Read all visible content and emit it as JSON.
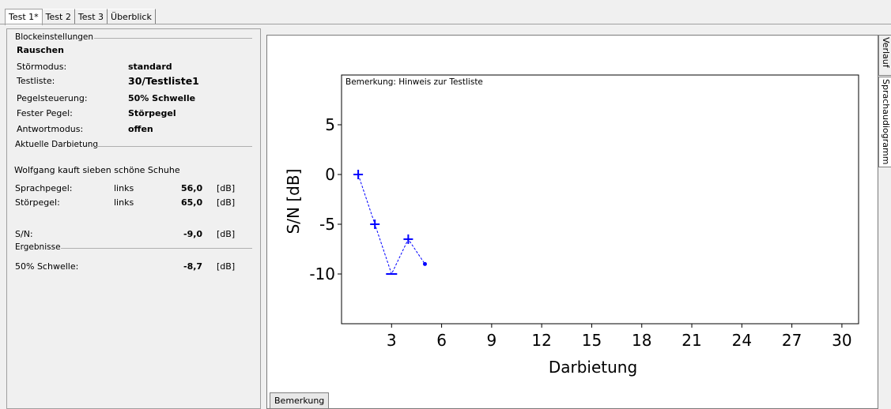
{
  "tabs": [
    "Test 1*",
    "Test 2",
    "Test 3",
    "Überblick"
  ],
  "block": {
    "header": "Blockeinstellungen",
    "noise": "Rauschen",
    "rows": [
      {
        "label": "Störmodus:",
        "value": "standard"
      },
      {
        "label": "Testliste:",
        "value": "30/Testliste1"
      },
      {
        "label": "Pegelsteuerung:",
        "value": "50% Schwelle"
      },
      {
        "label": "Fester Pegel:",
        "value": "Störpegel"
      },
      {
        "label": "Antwortmodus:",
        "value": "offen"
      }
    ]
  },
  "current": {
    "header": "Aktuelle Darbietung",
    "sentence": "Wolfgang kauft sieben schöne Schuhe",
    "speech_label": "Sprachpegel:",
    "speech_side": "links",
    "speech_value": "56,0",
    "speech_unit": "[dB]",
    "noise_label": "Störpegel:",
    "noise_side": "links",
    "noise_value": "65,0",
    "noise_unit": "[dB]",
    "sn_label": "S/N:",
    "sn_value": "-9,0",
    "sn_unit": "[dB]"
  },
  "results": {
    "header": "Ergebnisse",
    "threshold_label": "50% Schwelle:",
    "threshold_value": "-8,7",
    "threshold_unit": "[dB]"
  },
  "chart_data": {
    "type": "scatter",
    "annotation": "Bemerkung: Hinweis zur Testliste",
    "xlabel": "Darbietung",
    "ylabel": "S/N [dB]",
    "xlim": [
      0,
      31
    ],
    "ylim": [
      -15,
      10
    ],
    "xticks": [
      3,
      6,
      9,
      12,
      15,
      18,
      21,
      24,
      27,
      30
    ],
    "yticks": [
      5,
      0,
      -5,
      -10
    ],
    "color": "#0000ff",
    "points": [
      {
        "x": 1,
        "y": 0,
        "marker": "+"
      },
      {
        "x": 2,
        "y": -5,
        "marker": "+"
      },
      {
        "x": 3,
        "y": -10,
        "marker": "-"
      },
      {
        "x": 4,
        "y": -6.5,
        "marker": "+"
      },
      {
        "x": 5,
        "y": -9,
        "marker": "dot"
      }
    ]
  },
  "right_tabs": [
    "Verlauf",
    "Sprachaudiogramm"
  ],
  "button_label": "Bemerkung"
}
